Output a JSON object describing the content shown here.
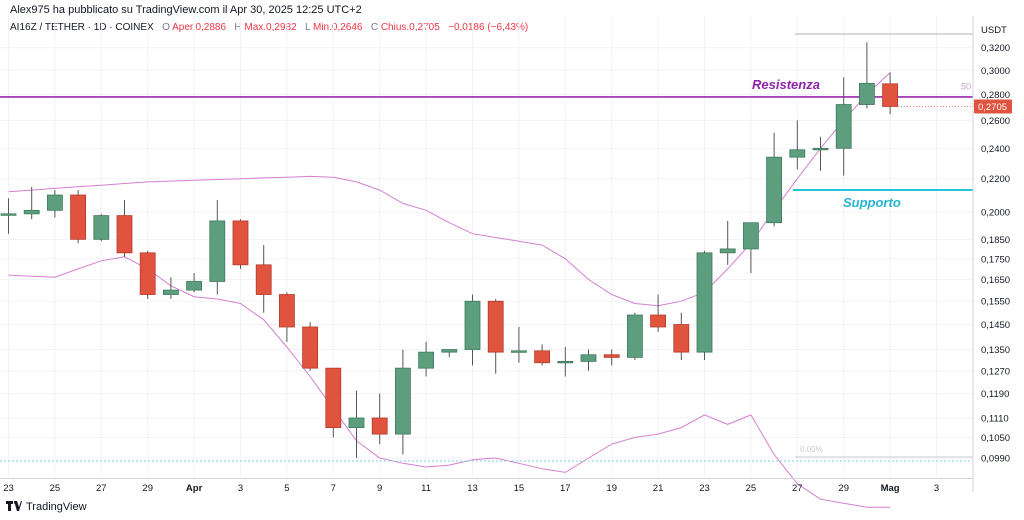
{
  "header": {
    "credit": "Alex975 ha pubblicato su TradingView.com il Apr 30, 2025 12:25 UTC+2"
  },
  "legend": {
    "symbol": "AI16Z / TETHER · 1D · COINEX",
    "open_label": "O",
    "open_value": "Aper.0,2886",
    "high_label": "H",
    "high_value": "Max.0,2982",
    "low_label": "L",
    "low_value": "Min.0,2646",
    "close_label": "C",
    "close_value": "Chius.0,2705",
    "change": "−0,0186 (−6,43%)"
  },
  "footer": {
    "brand": "TradingView"
  },
  "colors": {
    "up": "#5d9e7e",
    "down": "#e0533e",
    "bollinger": "#d67fd0",
    "resistance": "#9c27b0",
    "support": "#26c6da",
    "resistance_text": "#8e24aa",
    "support_text": "#26b6d2"
  },
  "chart_data": {
    "type": "candlestick",
    "title": "",
    "ylabel": "USDT",
    "ylim": [
      0.0935,
      0.329
    ],
    "yscale": "log",
    "y_ticks": [
      "0,3200",
      "0,3000",
      "0,2800",
      "0,2600",
      "0,2400",
      "0,2200",
      "0,2000",
      "0,1850",
      "0,1750",
      "0,1650",
      "0,1550",
      "0,1450",
      "0,1350",
      "0,1270",
      "0,1190",
      "0,1110",
      "0,1050",
      "0,0990"
    ],
    "x_ticks": [
      "23",
      "25",
      "27",
      "29",
      "Apr",
      "3",
      "5",
      "7",
      "9",
      "11",
      "13",
      "15",
      "17",
      "19",
      "21",
      "23",
      "25",
      "27",
      "29",
      "Mag",
      "3"
    ],
    "last_price_label": "0,2705",
    "candles": [
      {
        "date": "Mar 23",
        "open": 0.199,
        "high": 0.208,
        "low": 0.188,
        "close": 0.199
      },
      {
        "date": "Mar 24",
        "open": 0.199,
        "high": 0.215,
        "low": 0.196,
        "close": 0.201
      },
      {
        "date": "Mar 25",
        "open": 0.201,
        "high": 0.213,
        "low": 0.197,
        "close": 0.21
      },
      {
        "date": "Mar 26",
        "open": 0.21,
        "high": 0.213,
        "low": 0.183,
        "close": 0.185
      },
      {
        "date": "Mar 27",
        "open": 0.185,
        "high": 0.199,
        "low": 0.184,
        "close": 0.198
      },
      {
        "date": "Mar 28",
        "open": 0.198,
        "high": 0.207,
        "low": 0.176,
        "close": 0.178
      },
      {
        "date": "Mar 29",
        "open": 0.178,
        "high": 0.179,
        "low": 0.156,
        "close": 0.158
      },
      {
        "date": "Mar 30",
        "open": 0.158,
        "high": 0.166,
        "low": 0.156,
        "close": 0.16
      },
      {
        "date": "Mar 31",
        "open": 0.16,
        "high": 0.168,
        "low": 0.159,
        "close": 0.164
      },
      {
        "date": "Apr 1",
        "open": 0.164,
        "high": 0.207,
        "low": 0.158,
        "close": 0.195
      },
      {
        "date": "Apr 2",
        "open": 0.195,
        "high": 0.196,
        "low": 0.17,
        "close": 0.172
      },
      {
        "date": "Apr 3",
        "open": 0.172,
        "high": 0.182,
        "low": 0.15,
        "close": 0.158
      },
      {
        "date": "Apr 4",
        "open": 0.158,
        "high": 0.159,
        "low": 0.138,
        "close": 0.144
      },
      {
        "date": "Apr 5",
        "open": 0.144,
        "high": 0.146,
        "low": 0.127,
        "close": 0.128
      },
      {
        "date": "Apr 6",
        "open": 0.128,
        "high": 0.128,
        "low": 0.105,
        "close": 0.108
      },
      {
        "date": "Apr 7",
        "open": 0.108,
        "high": 0.12,
        "low": 0.099,
        "close": 0.111
      },
      {
        "date": "Apr 8",
        "open": 0.111,
        "high": 0.119,
        "low": 0.103,
        "close": 0.106
      },
      {
        "date": "Apr 9",
        "open": 0.106,
        "high": 0.135,
        "low": 0.1,
        "close": 0.128
      },
      {
        "date": "Apr 10",
        "open": 0.128,
        "high": 0.138,
        "low": 0.125,
        "close": 0.134
      },
      {
        "date": "Apr 11",
        "open": 0.134,
        "high": 0.135,
        "low": 0.132,
        "close": 0.135
      },
      {
        "date": "Apr 12",
        "open": 0.135,
        "high": 0.158,
        "low": 0.129,
        "close": 0.155
      },
      {
        "date": "Apr 13",
        "open": 0.155,
        "high": 0.156,
        "low": 0.126,
        "close": 0.134
      },
      {
        "date": "Apr 14",
        "open": 0.134,
        "high": 0.144,
        "low": 0.13,
        "close": 0.1345
      },
      {
        "date": "Apr 15",
        "open": 0.1345,
        "high": 0.137,
        "low": 0.129,
        "close": 0.13
      },
      {
        "date": "Apr 16",
        "open": 0.13,
        "high": 0.136,
        "low": 0.125,
        "close": 0.1305
      },
      {
        "date": "Apr 17",
        "open": 0.1305,
        "high": 0.135,
        "low": 0.127,
        "close": 0.133
      },
      {
        "date": "Apr 18",
        "open": 0.133,
        "high": 0.135,
        "low": 0.129,
        "close": 0.132
      },
      {
        "date": "Apr 19",
        "open": 0.132,
        "high": 0.15,
        "low": 0.131,
        "close": 0.149
      },
      {
        "date": "Apr 20",
        "open": 0.149,
        "high": 0.158,
        "low": 0.142,
        "close": 0.144
      },
      {
        "date": "Apr 21",
        "open": 0.145,
        "high": 0.15,
        "low": 0.131,
        "close": 0.134
      },
      {
        "date": "Apr 22",
        "open": 0.134,
        "high": 0.179,
        "low": 0.131,
        "close": 0.178
      },
      {
        "date": "Apr 23",
        "open": 0.178,
        "high": 0.195,
        "low": 0.172,
        "close": 0.18
      },
      {
        "date": "Apr 24",
        "open": 0.18,
        "high": 0.194,
        "low": 0.168,
        "close": 0.194
      },
      {
        "date": "Apr 25",
        "open": 0.194,
        "high": 0.251,
        "low": 0.192,
        "close": 0.234
      },
      {
        "date": "Apr 26",
        "open": 0.234,
        "high": 0.26,
        "low": 0.226,
        "close": 0.239
      },
      {
        "date": "Apr 27",
        "open": 0.239,
        "high": 0.248,
        "low": 0.225,
        "close": 0.24
      },
      {
        "date": "Apr 28",
        "open": 0.24,
        "high": 0.294,
        "low": 0.222,
        "close": 0.272
      },
      {
        "date": "Apr 29",
        "open": 0.272,
        "high": 0.325,
        "low": 0.269,
        "close": 0.289
      },
      {
        "date": "Apr 30",
        "open": 0.2886,
        "high": 0.2982,
        "low": 0.2646,
        "close": 0.2705
      }
    ],
    "bollinger_upper": [
      0.212,
      0.213,
      0.214,
      0.215,
      0.216,
      0.217,
      0.218,
      0.2185,
      0.219,
      0.2195,
      0.22,
      0.2205,
      0.221,
      0.2215,
      0.221,
      0.218,
      0.213,
      0.205,
      0.201,
      0.194,
      0.188,
      0.186,
      0.184,
      0.182,
      0.175,
      0.165,
      0.158,
      0.154,
      0.153,
      0.155,
      0.159,
      0.17,
      0.183,
      0.201,
      0.22,
      0.24,
      0.26,
      0.28,
      0.298
    ],
    "bollinger_lower": [
      0.167,
      0.1665,
      0.166,
      0.17,
      0.174,
      0.176,
      0.17,
      0.162,
      0.157,
      0.156,
      0.154,
      0.147,
      0.136,
      0.125,
      0.114,
      0.104,
      0.099,
      0.0975,
      0.0965,
      0.097,
      0.0985,
      0.099,
      0.0975,
      0.096,
      0.095,
      0.099,
      0.103,
      0.105,
      0.106,
      0.108,
      0.112,
      0.109,
      0.112,
      0.1,
      0.092,
      0.088,
      0.087,
      0.086,
      0.086
    ],
    "annotations": [
      {
        "label": "Resistenza",
        "value": 0.278,
        "color": "resistance"
      },
      {
        "label": "Supporto",
        "value": 0.213,
        "color": "support"
      }
    ],
    "extra_levels": [
      {
        "label": "50",
        "value": 0.28
      },
      {
        "label": "0.00%",
        "value": 0.099
      }
    ]
  }
}
